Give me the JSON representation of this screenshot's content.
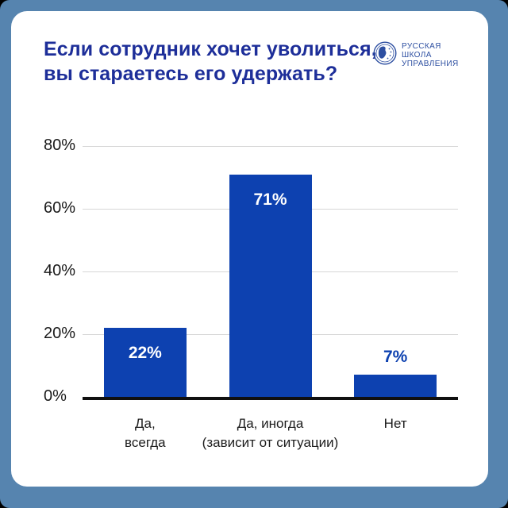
{
  "header": {
    "title_line1": "Если сотрудник хочет уволиться,",
    "title_line2": "вы стараетесь его удержать?"
  },
  "logo": {
    "line1": "РУССКАЯ",
    "line2": "ШКОЛА",
    "line3": "УПРАВЛЕНИЯ",
    "color": "#2d4fa1",
    "icon": "globe-in-circle"
  },
  "chart_data": {
    "type": "bar",
    "title": "Если сотрудник хочет уволиться, вы стараетесь его удержать?",
    "categories": [
      [
        "Да,",
        "всегда"
      ],
      [
        "Да, иногда",
        "(зависит от ситуации)"
      ],
      [
        "Нет"
      ]
    ],
    "values": [
      22,
      71,
      7
    ],
    "value_labels": [
      "22%",
      "71%",
      "7%"
    ],
    "ylim": [
      0,
      80
    ],
    "ytick_values": [
      0,
      20,
      40,
      60,
      80
    ],
    "ytick_labels": [
      "0%",
      "20%",
      "40%",
      "60%",
      "80%"
    ],
    "grid": true,
    "legend": false,
    "bar_color": "#0d41b0",
    "value_label_inside_color": "#ffffff",
    "value_label_outside_color": "#0d41b0",
    "grid_color": "#d7d7d7",
    "axis_color": "#101010",
    "background_color": "#ffffff",
    "page_background_color": "#5684af",
    "title_color": "#1d2e99"
  }
}
